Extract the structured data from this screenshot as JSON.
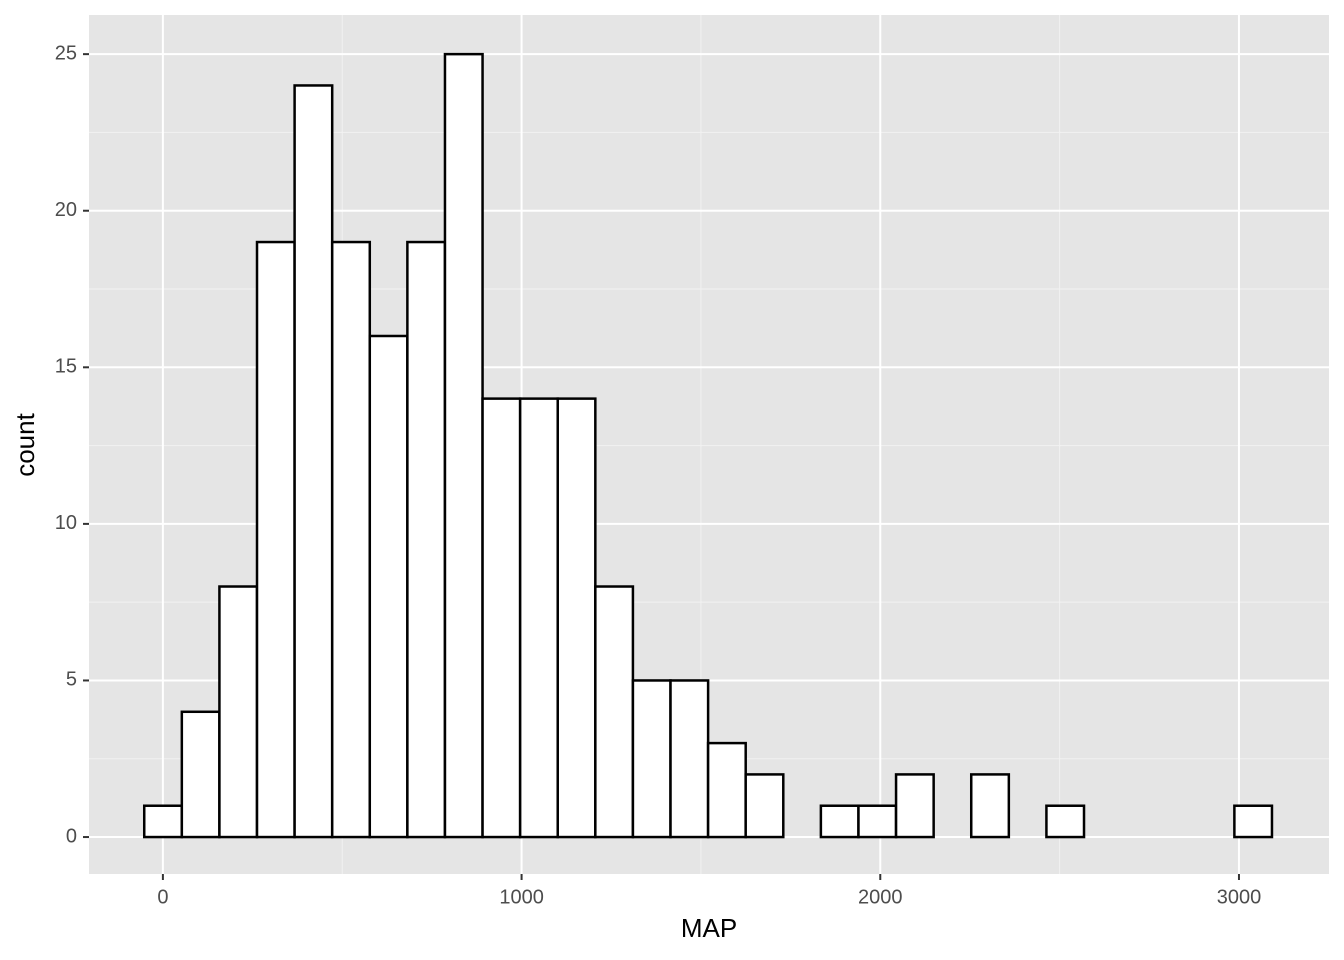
{
  "chart_data": {
    "type": "histogram",
    "x_label": "MAP",
    "y_label": "count",
    "bins": [
      -52,
      52.8,
      157.6,
      262.4,
      367.2,
      472,
      576.8,
      681.6,
      786.4,
      891.2,
      996,
      1100.8,
      1205.6,
      1310.4,
      1415.2,
      1520,
      1624.8,
      1729.6,
      1834.4,
      1939.2,
      2044,
      2148.8,
      2253.6,
      2358.4,
      2463.2,
      2568,
      2672.8,
      2777.6,
      2882.4,
      2987.2,
      3092
    ],
    "counts": [
      1,
      4,
      8,
      19,
      24,
      19,
      16,
      19,
      25,
      14,
      14,
      14,
      8,
      5,
      5,
      3,
      2,
      0,
      1,
      1,
      2,
      0,
      2,
      0,
      1,
      0,
      0,
      0,
      0,
      1
    ],
    "fill": "#ffffff",
    "edge_color": "#000000",
    "xlim": [
      -206,
      3251
    ],
    "xticks": [
      0,
      1000,
      2000,
      3000
    ],
    "ylim": [
      -1.18,
      26.25
    ],
    "yticks": [
      0,
      5,
      10,
      15,
      20,
      25
    ],
    "grid": true
  }
}
